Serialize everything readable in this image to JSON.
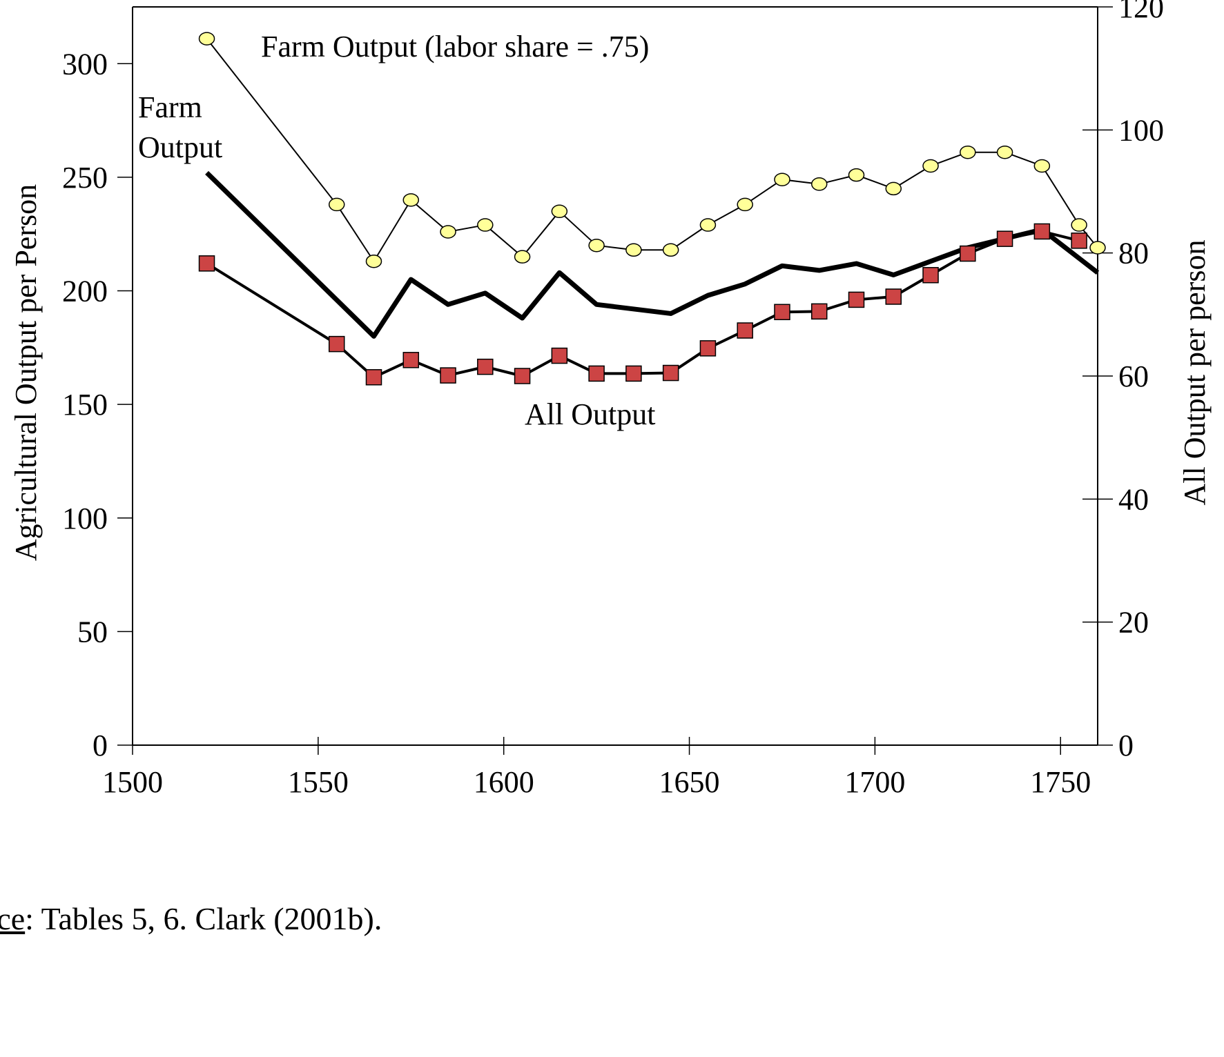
{
  "chart_data": {
    "type": "line",
    "x_axis": {
      "lim": [
        1500,
        1760
      ],
      "ticks": [
        1500,
        1550,
        1600,
        1650,
        1700,
        1750
      ]
    },
    "y_axis_left": {
      "label": "Agricultural Output per Person",
      "lim": [
        0,
        325
      ],
      "ticks": [
        0,
        50,
        100,
        150,
        200,
        250,
        300
      ]
    },
    "y_axis_right": {
      "label": "All Output per person",
      "lim": [
        0,
        120
      ],
      "ticks": [
        0,
        20,
        40,
        60,
        80,
        100,
        120
      ]
    },
    "grid": false,
    "series": [
      {
        "name": "Farm Output (labor share = .75)",
        "axis": "left",
        "marker": "circle",
        "color": "#ffff99",
        "x": [
          1520,
          1555,
          1565,
          1575,
          1585,
          1595,
          1605,
          1615,
          1625,
          1635,
          1645,
          1655,
          1665,
          1675,
          1685,
          1695,
          1705,
          1715,
          1725,
          1735,
          1745,
          1755,
          1760
        ],
        "y": [
          311,
          238,
          213,
          240,
          226,
          229,
          215,
          235,
          220,
          218,
          218,
          229,
          238,
          249,
          247,
          251,
          245,
          255,
          261,
          261,
          255,
          229,
          219
        ]
      },
      {
        "name": "Farm Output",
        "axis": "left",
        "marker": "none",
        "color": "#000000",
        "x": [
          1520,
          1565,
          1575,
          1585,
          1595,
          1605,
          1615,
          1625,
          1645,
          1655,
          1665,
          1675,
          1685,
          1695,
          1705,
          1725,
          1745,
          1760
        ],
        "y": [
          252,
          180,
          205,
          194,
          199,
          188,
          208,
          194,
          190,
          198,
          203,
          211,
          209,
          212,
          207,
          219,
          227,
          208
        ]
      },
      {
        "name": "All Output",
        "axis": "right",
        "marker": "square",
        "color": "#cc4444",
        "x": [
          1520,
          1555,
          1565,
          1575,
          1585,
          1595,
          1605,
          1615,
          1625,
          1635,
          1645,
          1655,
          1665,
          1675,
          1685,
          1695,
          1705,
          1715,
          1725,
          1735,
          1745,
          1755
        ],
        "y": [
          78.3,
          65.2,
          59.8,
          62.6,
          60.1,
          61.5,
          60.0,
          63.3,
          60.4,
          60.4,
          60.5,
          64.5,
          67.4,
          70.4,
          70.5,
          72.4,
          72.9,
          76.4,
          79.9,
          82.3,
          83.5,
          82.0
        ]
      }
    ],
    "annotations": [
      "Farm Output (labor share = .75)",
      "Farm",
      "Output",
      "All Output"
    ]
  },
  "source_note": {
    "prefix": "rce",
    "text": ":  Tables 5, 6.  Clark (2001b)."
  }
}
